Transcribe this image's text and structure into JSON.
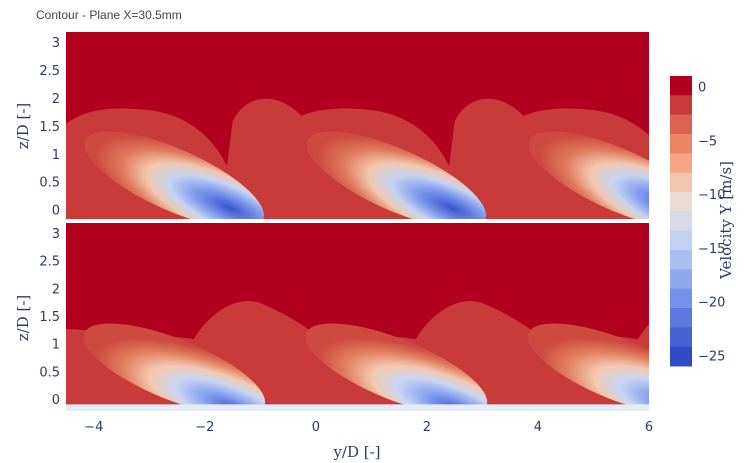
{
  "title": "Contour - Plane X=30.5mm",
  "chart_data": [
    {
      "type": "heatmap",
      "panel": "top",
      "title": "",
      "xlabel": "",
      "ylabel": "z/D  [-]",
      "xlim": [
        -4.5,
        6
      ],
      "ylim": [
        -0.15,
        3.2
      ],
      "yticks": [
        0,
        0.5,
        1,
        1.5,
        2,
        2.5,
        3
      ],
      "ytick_labels": [
        "0",
        "0.5",
        "1",
        "1.5",
        "2",
        "2.5",
        "3"
      ],
      "jets_y_over_D": [
        -3.4,
        0.6,
        4.6
      ],
      "min_velocity": -26
    },
    {
      "type": "heatmap",
      "panel": "bottom",
      "title": "",
      "xlabel": "y/D  [-]",
      "ylabel": "z/D  [-]",
      "xlim": [
        -4.5,
        6
      ],
      "ylim": [
        -0.2,
        3.2
      ],
      "xticks": [
        -4,
        -2,
        0,
        2,
        4,
        6
      ],
      "xtick_labels": [
        "−4",
        "−2",
        "0",
        "2",
        "4",
        "6"
      ],
      "yticks": [
        0,
        0.5,
        1,
        1.5,
        2,
        2.5,
        3
      ],
      "ytick_labels": [
        "0",
        "0.5",
        "1",
        "1.5",
        "2",
        "2.5",
        "3"
      ],
      "jets_y_over_D": [
        -3.4,
        0.6,
        4.6
      ],
      "min_velocity": -22
    }
  ],
  "colorbar": {
    "title": "Velocity Y [m/s]",
    "range": [
      -26,
      1
    ],
    "ticks": [
      0,
      -5,
      -10,
      -15,
      -20,
      -25
    ],
    "tick_labels": [
      "0",
      "−5",
      "−10",
      "−15",
      "−20",
      "−25"
    ],
    "levels": [
      "#b2001f",
      "#c93a3a",
      "#dd6351",
      "#ec8568",
      "#f4a584",
      "#f1c5ae",
      "#e9dcd3",
      "#d6d9e6",
      "#c3d1f0",
      "#a9bff2",
      "#8fa9f0",
      "#7592ea",
      "#5b79df",
      "#4462d3",
      "#2f4bc5"
    ]
  }
}
